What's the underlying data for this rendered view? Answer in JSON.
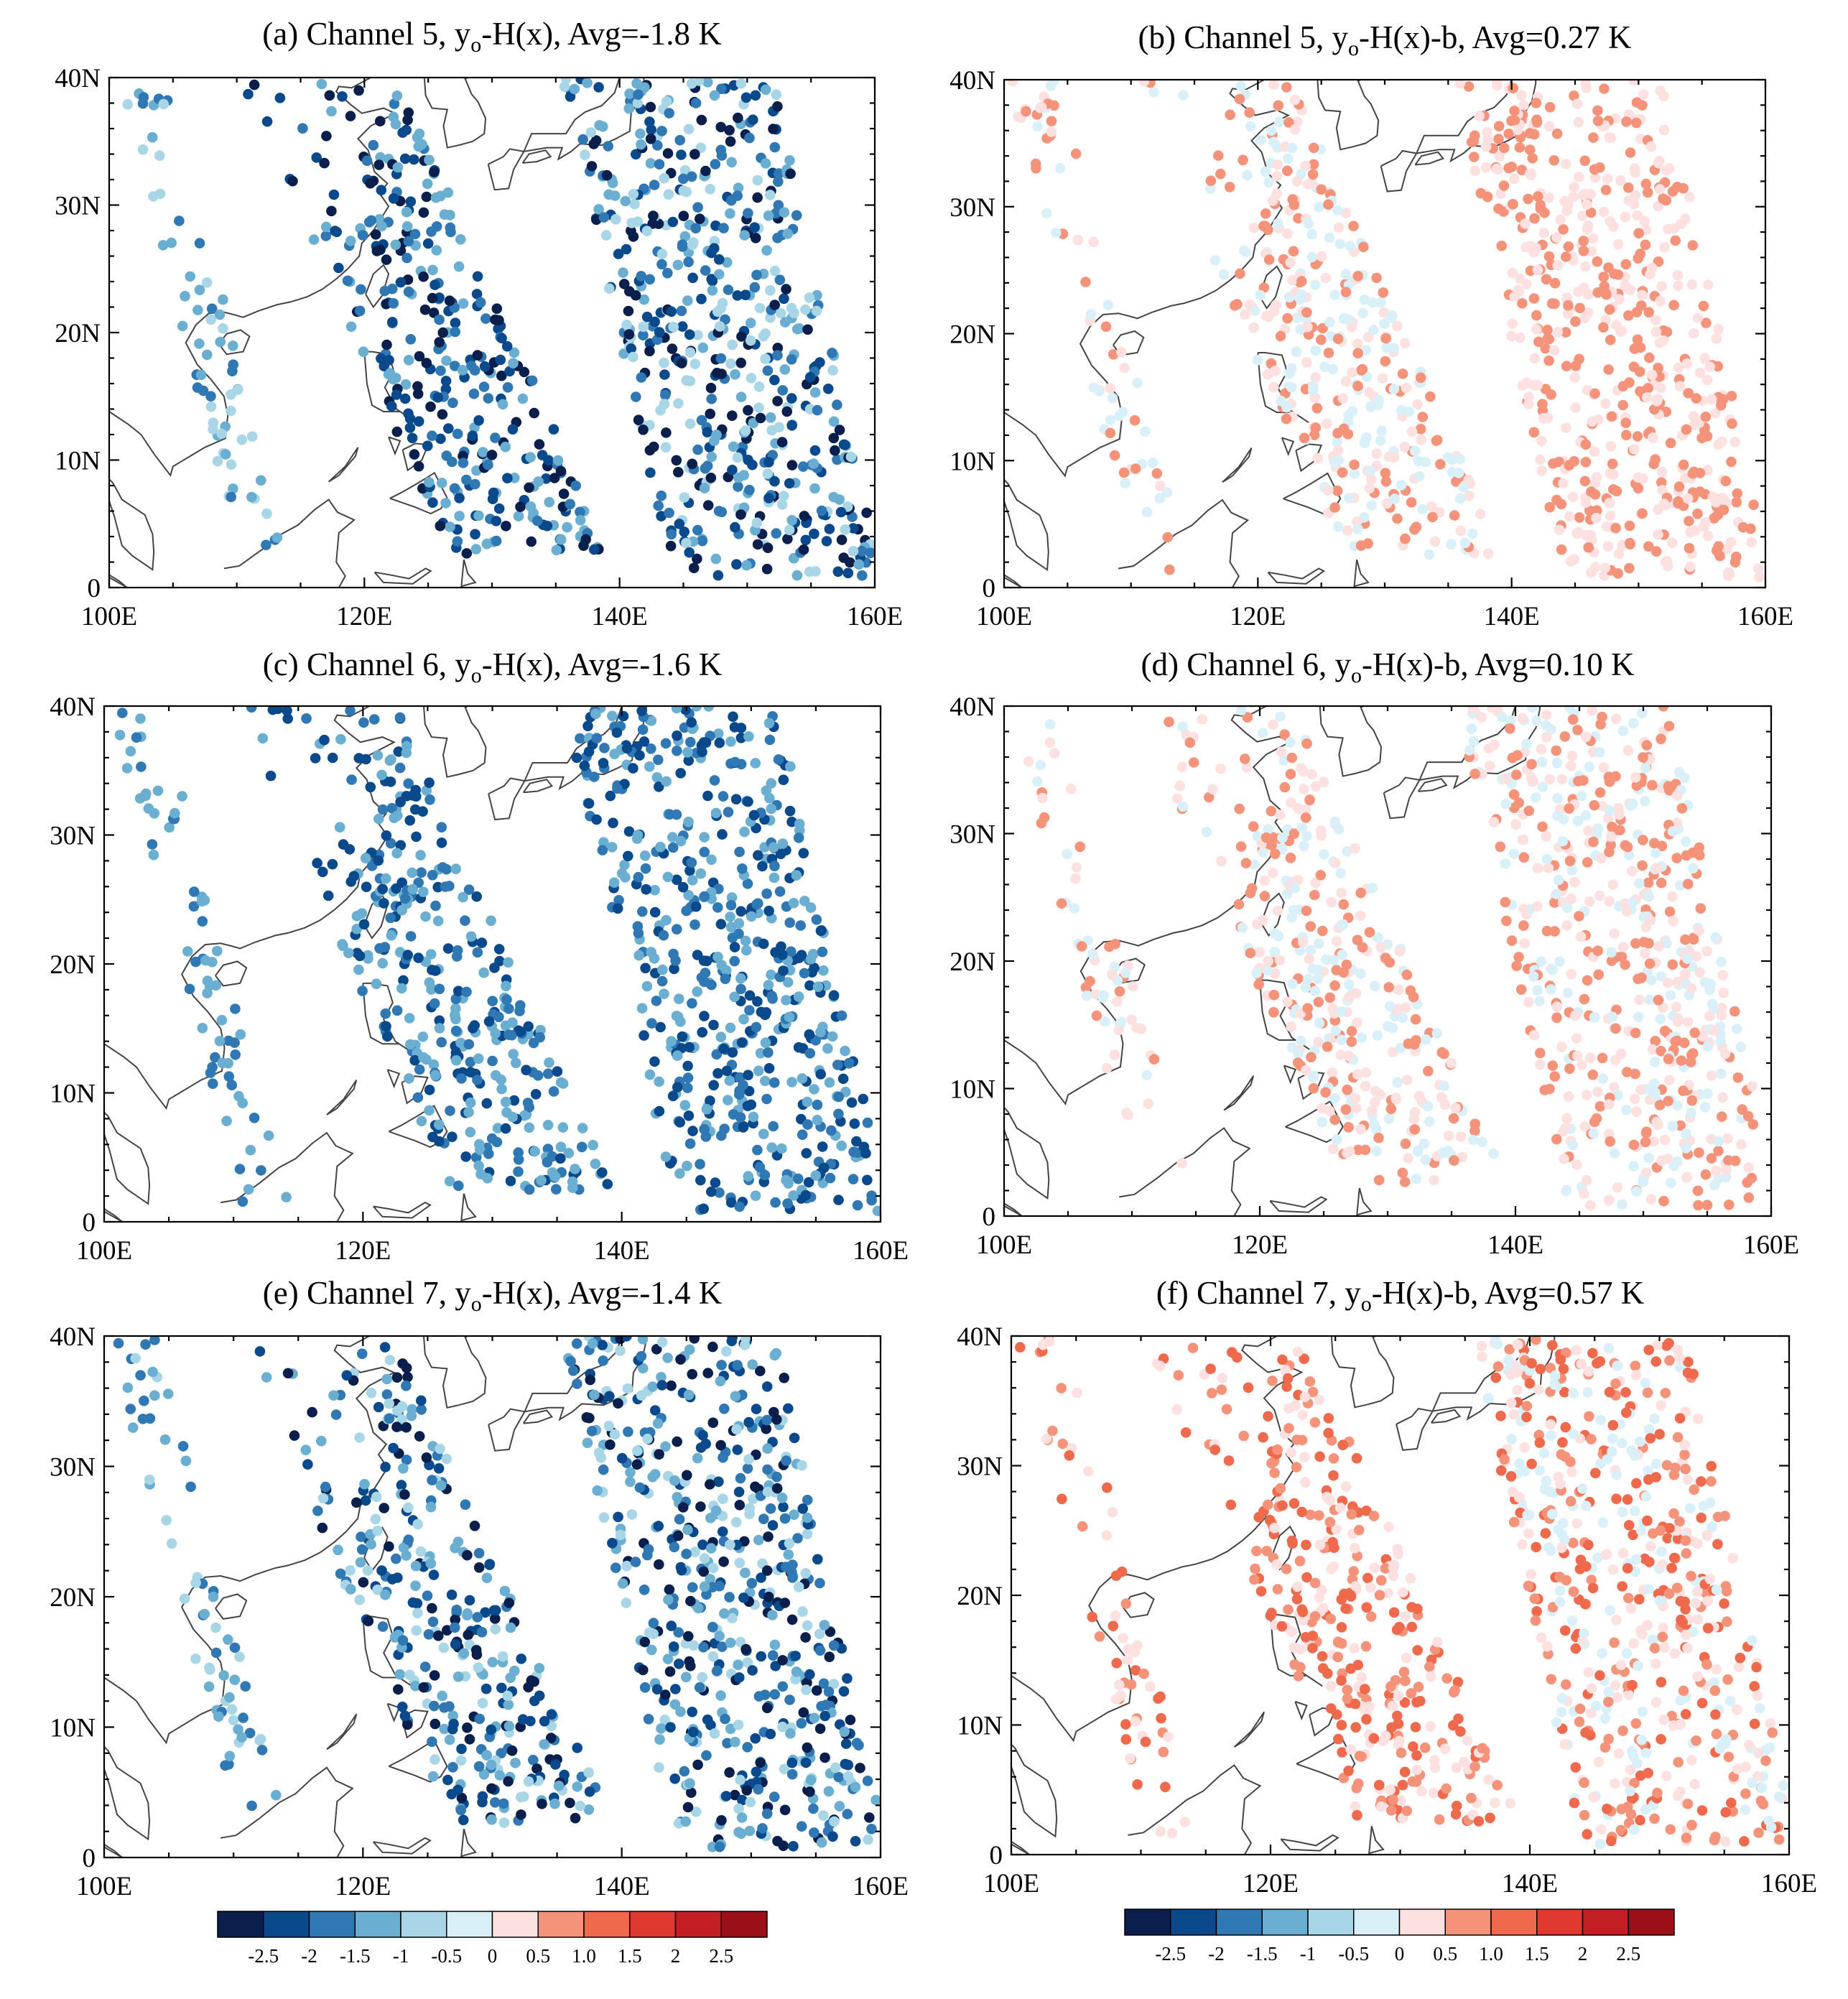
{
  "chart_data": [
    {
      "panel": "a",
      "type": "scatter",
      "title_pre": "(a) Channel 5, y",
      "title_sub": "o",
      "title_post": "-H(x), Avg=-1.8 K",
      "mode": "omb",
      "avg": -1.8,
      "x_ticks": [
        "100E",
        "120E",
        "140E",
        "160E"
      ],
      "y_ticks": [
        "0",
        "10N",
        "20N",
        "30N",
        "40N"
      ],
      "xlim": [
        100,
        160
      ],
      "ylim": [
        0,
        40
      ],
      "swaths": [
        {
          "region": "west strip",
          "lon_range": [
            100,
            111
          ],
          "lat_range": [
            0,
            40
          ],
          "value_range": [
            -2.0,
            -0.5
          ]
        },
        {
          "region": "central swath",
          "lon_range": [
            108,
            137
          ],
          "lat_range": [
            2,
            40
          ],
          "value_range": [
            -3.0,
            -1.0
          ]
        },
        {
          "region": "east swath",
          "lon_range": [
            135,
            160
          ],
          "lat_range": [
            0,
            40
          ],
          "value_range": [
            -3.0,
            -0.5
          ]
        }
      ]
    },
    {
      "panel": "b",
      "type": "scatter",
      "title_pre": "(b) Channel 5, y",
      "title_sub": "o",
      "title_post": "-H(x)-b, Avg=0.27 K",
      "mode": "oma",
      "avg": 0.27,
      "x_ticks": [
        "100E",
        "120E",
        "140E",
        "160E"
      ],
      "y_ticks": [
        "0",
        "10N",
        "20N",
        "30N",
        "40N"
      ],
      "xlim": [
        100,
        160
      ],
      "ylim": [
        0,
        40
      ],
      "swaths": [
        {
          "region": "west strip",
          "lon_range": [
            100,
            111
          ],
          "lat_range": [
            0,
            40
          ],
          "value_range": [
            -0.5,
            1.0
          ]
        },
        {
          "region": "central swath",
          "lon_range": [
            108,
            137
          ],
          "lat_range": [
            2,
            40
          ],
          "value_range": [
            -0.5,
            1.0
          ]
        },
        {
          "region": "east swath",
          "lon_range": [
            135,
            160
          ],
          "lat_range": [
            0,
            40
          ],
          "value_range": [
            0,
            1.0
          ]
        }
      ]
    },
    {
      "panel": "c",
      "type": "scatter",
      "title_pre": "(c) Channel 6, y",
      "title_sub": "o",
      "title_post": "-H(x), Avg=-1.6 K",
      "mode": "omb",
      "avg": -1.6,
      "x_ticks": [
        "100E",
        "120E",
        "140E",
        "160E"
      ],
      "y_ticks": [
        "0",
        "10N",
        "20N",
        "30N",
        "40N"
      ],
      "xlim": [
        100,
        160
      ],
      "ylim": [
        0,
        40
      ],
      "swaths": [
        {
          "region": "west strip",
          "lon_range": [
            100,
            111
          ],
          "lat_range": [
            0,
            40
          ],
          "value_range": [
            -2.0,
            -1.0
          ]
        },
        {
          "region": "central swath",
          "lon_range": [
            108,
            137
          ],
          "lat_range": [
            2,
            40
          ],
          "value_range": [
            -2.5,
            -1.0
          ]
        },
        {
          "region": "east swath",
          "lon_range": [
            135,
            160
          ],
          "lat_range": [
            0,
            40
          ],
          "value_range": [
            -2.5,
            -1.0
          ]
        }
      ]
    },
    {
      "panel": "d",
      "type": "scatter",
      "title_pre": "(d) Channel 6, y",
      "title_sub": "o",
      "title_post": "-H(x)-b, Avg=0.10 K",
      "mode": "oma",
      "avg": 0.1,
      "x_ticks": [
        "100E",
        "120E",
        "140E",
        "160E"
      ],
      "y_ticks": [
        "0",
        "10N",
        "20N",
        "30N",
        "40N"
      ],
      "xlim": [
        100,
        160
      ],
      "ylim": [
        0,
        40
      ],
      "swaths": [
        {
          "region": "west strip",
          "lon_range": [
            100,
            111
          ],
          "lat_range": [
            0,
            40
          ],
          "value_range": [
            -0.5,
            1.0
          ]
        },
        {
          "region": "central swath",
          "lon_range": [
            108,
            137
          ],
          "lat_range": [
            2,
            40
          ],
          "value_range": [
            -0.5,
            1.0
          ]
        },
        {
          "region": "east swath",
          "lon_range": [
            135,
            160
          ],
          "lat_range": [
            0,
            40
          ],
          "value_range": [
            -0.5,
            1.0
          ]
        }
      ]
    },
    {
      "panel": "e",
      "type": "scatter",
      "title_pre": "(e) Channel 7, y",
      "title_sub": "o",
      "title_post": "-H(x), Avg=-1.4 K",
      "mode": "omb",
      "avg": -1.4,
      "x_ticks": [
        "100E",
        "120E",
        "140E",
        "160E"
      ],
      "y_ticks": [
        "0",
        "10N",
        "20N",
        "30N",
        "40N"
      ],
      "xlim": [
        100,
        160
      ],
      "ylim": [
        0,
        40
      ],
      "swaths": [
        {
          "region": "west strip",
          "lon_range": [
            100,
            111
          ],
          "lat_range": [
            0,
            40
          ],
          "value_range": [
            -2.0,
            -0.5
          ]
        },
        {
          "region": "central swath",
          "lon_range": [
            108,
            137
          ],
          "lat_range": [
            2,
            40
          ],
          "value_range": [
            -3.0,
            -0.5
          ]
        },
        {
          "region": "east swath",
          "lon_range": [
            135,
            160
          ],
          "lat_range": [
            0,
            40
          ],
          "value_range": [
            -3.0,
            -0.5
          ]
        }
      ]
    },
    {
      "panel": "f",
      "type": "scatter",
      "title_pre": "(f) Channel 7, y",
      "title_sub": "o",
      "title_post": "-H(x)-b, Avg=0.57 K",
      "mode": "oma",
      "avg": 0.57,
      "x_ticks": [
        "100E",
        "120E",
        "140E",
        "160E"
      ],
      "y_ticks": [
        "0",
        "10N",
        "20N",
        "30N",
        "40N"
      ],
      "xlim": [
        100,
        160
      ],
      "ylim": [
        0,
        40
      ],
      "swaths": [
        {
          "region": "west strip",
          "lon_range": [
            100,
            111
          ],
          "lat_range": [
            0,
            40
          ],
          "value_range": [
            0,
            1.5
          ]
        },
        {
          "region": "central swath",
          "lon_range": [
            108,
            137
          ],
          "lat_range": [
            2,
            40
          ],
          "value_range": [
            0,
            1.5
          ]
        },
        {
          "region": "east swath",
          "lon_range": [
            135,
            160
          ],
          "lat_range": [
            0,
            40
          ],
          "value_range": [
            -0.5,
            1.5
          ]
        }
      ]
    }
  ],
  "colorbar": {
    "labels": [
      "-2.5",
      "-2",
      "-1.5",
      "-1",
      "-0.5",
      "0",
      "0.5",
      "1.0",
      "1.5",
      "2",
      "2.5"
    ],
    "colors": [
      "#0a1f4c",
      "#0a4a8c",
      "#2f78b4",
      "#6aaed2",
      "#a8d6e6",
      "#daf0f8",
      "#fde0e0",
      "#f5937a",
      "#ef6a4c",
      "#e03a30",
      "#c31e24",
      "#9a0f18"
    ]
  }
}
